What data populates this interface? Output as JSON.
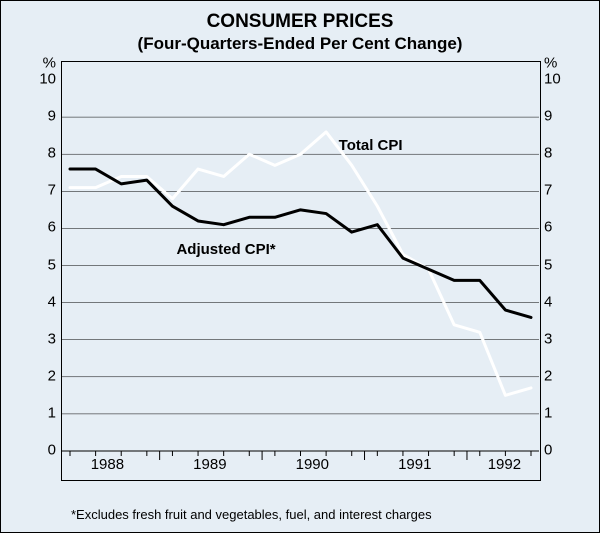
{
  "chart": {
    "type": "line",
    "title": "CONSUMER PRICES",
    "subtitle": "(Four-Quarters-Ended Per Cent Change)",
    "footnote": "*Excludes fresh fruit and vegetables, fuel, and interest charges",
    "background_color": "#e6eef5",
    "plot_border_color": "#000000",
    "grid_color": "#000000",
    "grid_width": 0.5,
    "title_fontsize": 19,
    "subtitle_fontsize": 17,
    "label_fontsize": 15,
    "footnote_fontsize": 13,
    "y_axis": {
      "unit_label": "%",
      "min": 0,
      "max": 10,
      "ticks": [
        0,
        1,
        2,
        3,
        4,
        5,
        6,
        7,
        8,
        9,
        10
      ]
    },
    "x_axis": {
      "years": [
        "1988",
        "1989",
        "1990",
        "1991",
        "1992"
      ],
      "quarter_count": 19,
      "minor_ticks_per_year": 4
    },
    "series": [
      {
        "name": "Total CPI",
        "label": "Total CPI",
        "color": "#ffffff",
        "width": 3,
        "label_pos": {
          "x_pct": 58,
          "y_pct": 18
        },
        "values": [
          7.1,
          7.1,
          7.4,
          7.4,
          6.8,
          7.6,
          7.4,
          8.0,
          7.7,
          8.0,
          8.6,
          7.7,
          6.6,
          5.3,
          4.9,
          3.4,
          3.2,
          1.5,
          1.7
        ]
      },
      {
        "name": "Adjusted CPI",
        "label": "Adjusted CPI*",
        "color": "#000000",
        "width": 3,
        "label_pos": {
          "x_pct": 24,
          "y_pct": 43
        },
        "values": [
          7.6,
          7.6,
          7.2,
          7.3,
          6.6,
          6.2,
          6.1,
          6.3,
          6.3,
          6.5,
          6.4,
          5.9,
          6.1,
          5.2,
          4.9,
          4.6,
          4.6,
          3.8,
          3.6
        ]
      }
    ]
  }
}
